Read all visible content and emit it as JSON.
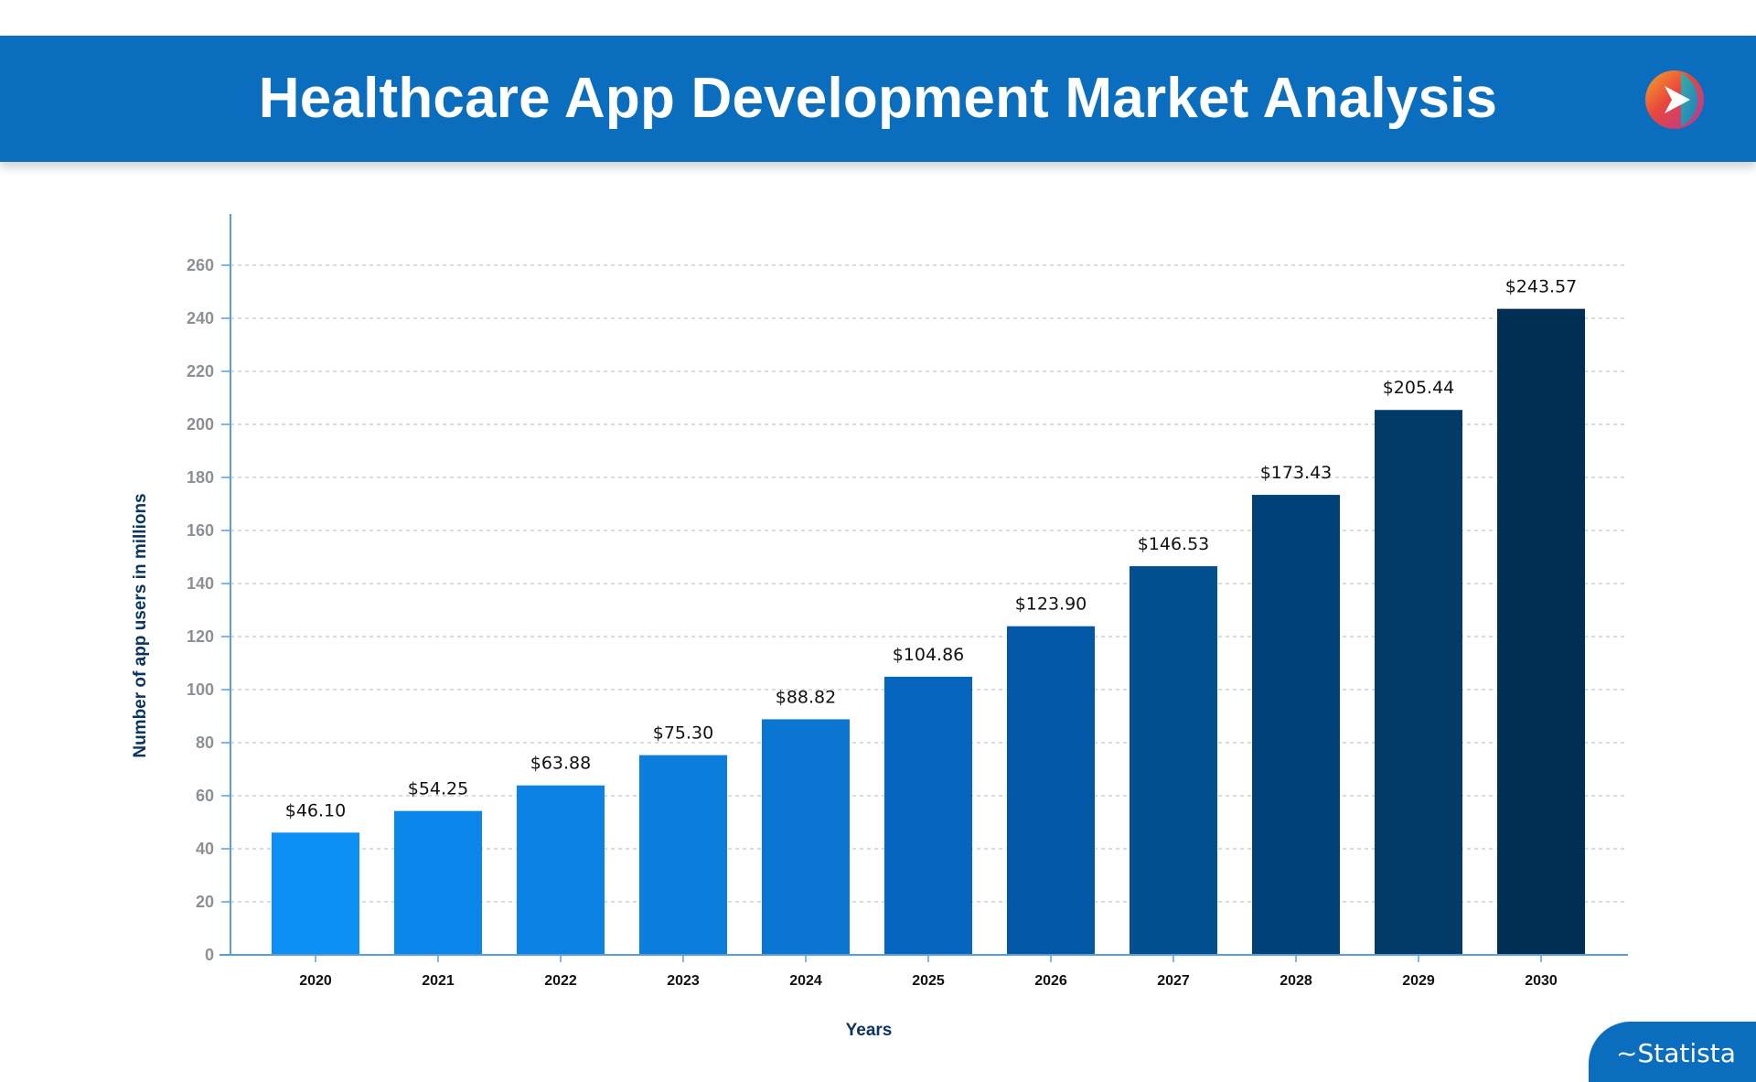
{
  "header": {
    "title": "Healthcare App Development Market Analysis",
    "logo_icon": "play-arrow-logo-icon"
  },
  "chart_data": {
    "type": "bar",
    "title": "Healthcare App Development Market Analysis",
    "xlabel": "Years",
    "ylabel": "Number of app users in millions",
    "categories": [
      "2020",
      "2021",
      "2022",
      "2023",
      "2024",
      "2025",
      "2026",
      "2027",
      "2028",
      "2029",
      "2030"
    ],
    "values": [
      46.1,
      54.25,
      63.88,
      75.3,
      88.82,
      104.86,
      123.9,
      146.53,
      173.43,
      205.44,
      243.57
    ],
    "data_labels": [
      "$46.10",
      "$54.25",
      "$63.88",
      "$75.30",
      "$88.82",
      "$104.86",
      "$123.90",
      "$146.53",
      "$173.43",
      "$205.44",
      "$243.57"
    ],
    "ylim": [
      0,
      270
    ],
    "yticks": [
      0,
      20,
      40,
      60,
      80,
      100,
      120,
      140,
      160,
      180,
      200,
      220,
      240,
      260
    ],
    "grid": "horizontal dashed",
    "legend": "none",
    "bar_colors": [
      "#0b8ff5",
      "#0b86eb",
      "#0b83e5",
      "#0b7ddc",
      "#0b76d1",
      "#0666bd",
      "#0358a6",
      "#02508f",
      "#014379",
      "#023a68",
      "#012e53"
    ]
  },
  "source": {
    "label": "~Statista"
  },
  "colors": {
    "header_bg": "#0b6dbe",
    "axis_title": "#0a3560",
    "tick_label": "#8b8f96",
    "axis_line": "#5b9ed6",
    "grid": "#cfcfcf"
  }
}
